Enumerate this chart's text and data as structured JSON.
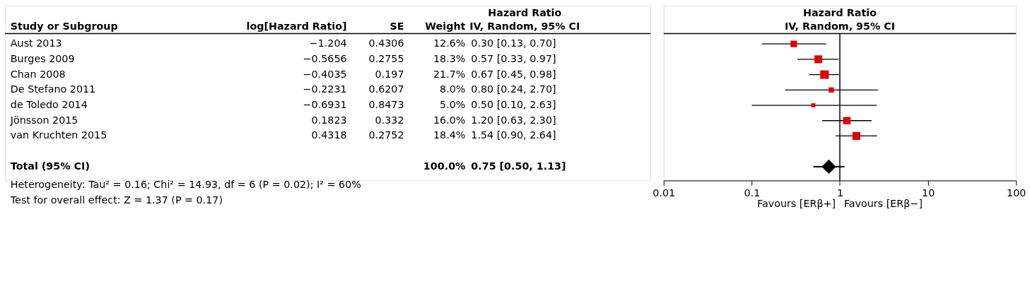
{
  "chart_data": [
    {
      "type": "other",
      "ylabel": "Study or Subgroup",
      "categories": [
        "log[Hazard Ratio]",
        "SE",
        "Weight",
        "Hazard Ratio\nIV, Random, 95% CI"
      ],
      "y_categories": [
        "Aust 2013",
        "Burges 2009",
        "Chan 2008",
        "De Stefano 2011",
        "de Toledo 2014",
        "Jönsson 2015",
        "van Kruchten 2015",
        null,
        "Total (95% CI)"
      ],
      "cell_labels": [
        [
          "−1.204",
          "0.4306",
          "12.6%",
          "0.30 [0.13, 0.70]"
        ],
        [
          "−0.5656",
          "0.2755",
          "18.3%",
          "0.57 [0.33, 0.97]"
        ],
        [
          "−0.4035",
          "0.197",
          "21.7%",
          "0.67 [0.45, 0.98]"
        ],
        [
          "−0.2231",
          "0.6207",
          "8.0%",
          "0.80 [0.24, 2.70]"
        ],
        [
          "−0.6931",
          "0.8473",
          "5.0%",
          "0.50 [0.10, 2.63]"
        ],
        [
          "0.1823",
          "0.332",
          "16.0%",
          "1.20 [0.63, 2.30]"
        ],
        [
          "0.4318",
          "0.2752",
          "18.4%",
          "1.54 [0.90, 2.64]"
        ],
        [
          null,
          null,
          null,
          null
        ],
        [
          null,
          null,
          "100.0%",
          "0.75 [0.50, 1.13]"
        ]
      ],
      "annotations": [
        "Heterogeneity: Tau² = 0.16; Chi² = 14.93, df = 6 (P = 0.02); I² = 60%",
        "Test for overall effect: Z = 1.37 (P = 0.17)"
      ]
    },
    {
      "type": "scatter",
      "orientation": "horizontal",
      "title": "Hazard Ratio",
      "subtitle": "IV, Random, 95% CI",
      "categories": [
        null,
        null,
        null,
        null,
        null,
        null,
        null,
        null,
        null
      ],
      "series": [
        {
          "color": "#e00000",
          "marker": "square",
          "values": [
            0.3,
            0.57,
            0.67,
            0.8,
            0.5,
            1.2,
            1.54,
            null,
            null
          ],
          "errors": [
            [
              0.13,
              0.7
            ],
            [
              0.33,
              0.97
            ],
            [
              0.45,
              0.98
            ],
            [
              0.24,
              2.7
            ],
            [
              0.1,
              2.63
            ],
            [
              0.63,
              2.3
            ],
            [
              0.9,
              2.64
            ],
            null,
            null
          ],
          "sizes": [
            0.58,
            0.84,
            1,
            0.37,
            0.23,
            0.74,
            0.85,
            null,
            null
          ]
        },
        {
          "color": "#000000",
          "marker": "diamond",
          "values": [
            null,
            null,
            null,
            null,
            null,
            null,
            null,
            null,
            0.75
          ],
          "errors": [
            null,
            null,
            null,
            null,
            null,
            null,
            null,
            null,
            [
              0.5,
              1.13
            ]
          ]
        }
      ],
      "log": "x",
      "xlim": [
        0.01,
        100
      ],
      "xticks": [
        0.01,
        0.1,
        1,
        10,
        100
      ],
      "ref_lines": [
        {
          "axis": "x",
          "value": 1
        }
      ],
      "tick_labels": "x",
      "annotations": [
        "Favours [ERβ+]",
        "Favours [ERβ−]"
      ]
    }
  ]
}
